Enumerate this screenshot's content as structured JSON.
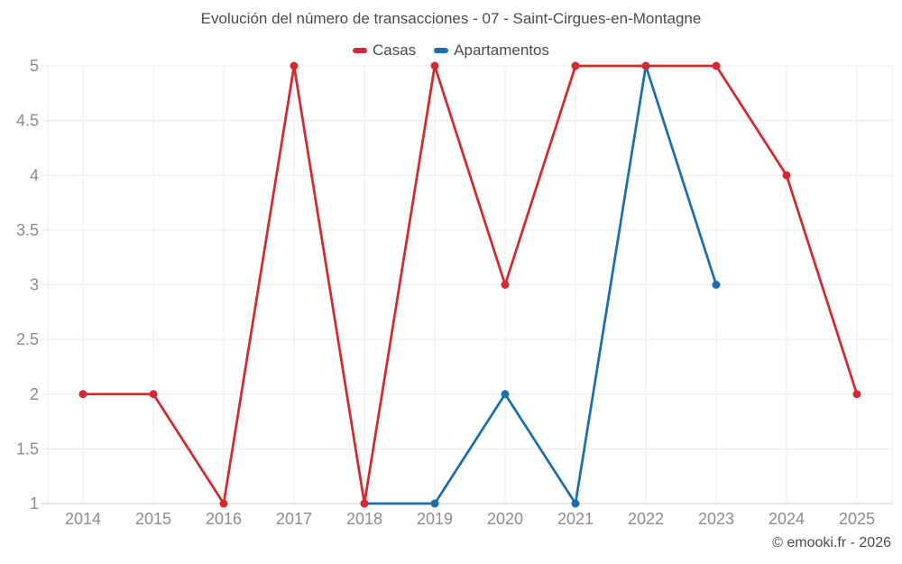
{
  "footer": {
    "copyright": "© emooki.fr - 2026"
  },
  "colors": {
    "casas": "#d7282f",
    "apartamentos": "#1b6fae",
    "grid": "#ececec",
    "axis": "#cfcfcf",
    "tick_label": "#8c8c8c",
    "text": "#4c4c4c",
    "background": "#ffffff"
  },
  "chart_data": {
    "type": "line",
    "title": "Evolución del número de transacciones - 07 - Saint-Cirgues-en-Montagne",
    "categories": [
      "2014",
      "2015",
      "2016",
      "2017",
      "2018",
      "2019",
      "2020",
      "2021",
      "2022",
      "2023",
      "2024",
      "2025"
    ],
    "series": [
      {
        "name": "Casas",
        "color": "#d7282f",
        "values": [
          2,
          2,
          1,
          5,
          1,
          5,
          3,
          5,
          5,
          5,
          4,
          2
        ]
      },
      {
        "name": "Apartamentos",
        "color": "#1b6fae",
        "values": [
          null,
          null,
          null,
          null,
          1,
          1,
          2,
          1,
          5,
          3,
          null,
          null
        ]
      }
    ],
    "ylim": [
      1,
      5
    ],
    "ytick_step": 0.5,
    "grid": true,
    "legend_position": "top"
  }
}
